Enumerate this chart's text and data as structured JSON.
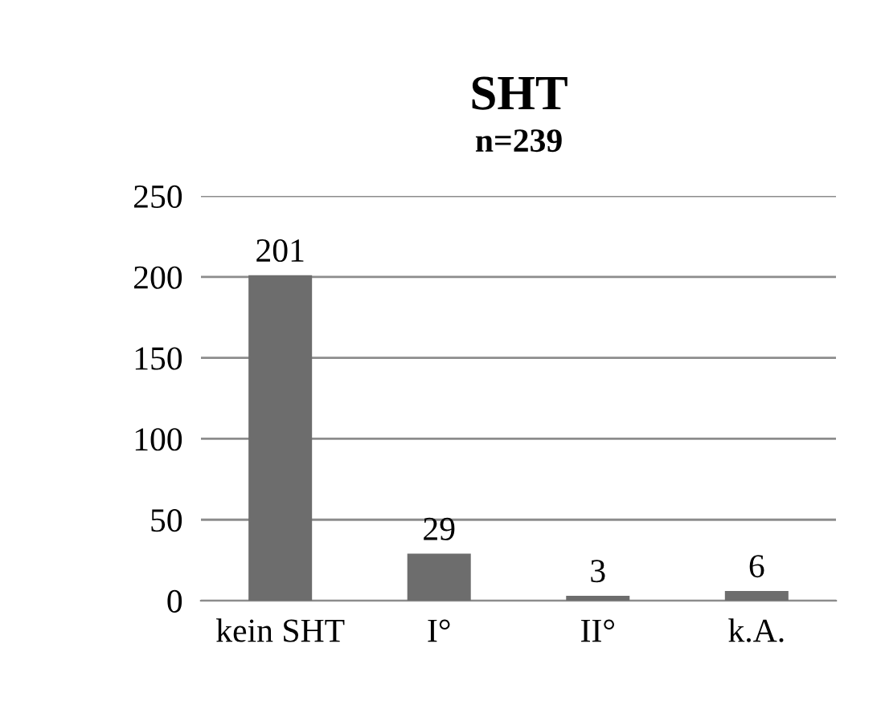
{
  "chart_data": {
    "type": "bar",
    "title": "SHT",
    "subtitle": "n=239",
    "categories": [
      "kein SHT",
      "I°",
      "II°",
      "k.A."
    ],
    "values": [
      201,
      29,
      3,
      6
    ],
    "color": "#6d6d6d",
    "ylim": [
      0,
      250
    ],
    "yticks": [
      0,
      50,
      100,
      150,
      200,
      250
    ],
    "grid": "y",
    "data_labels": true
  }
}
